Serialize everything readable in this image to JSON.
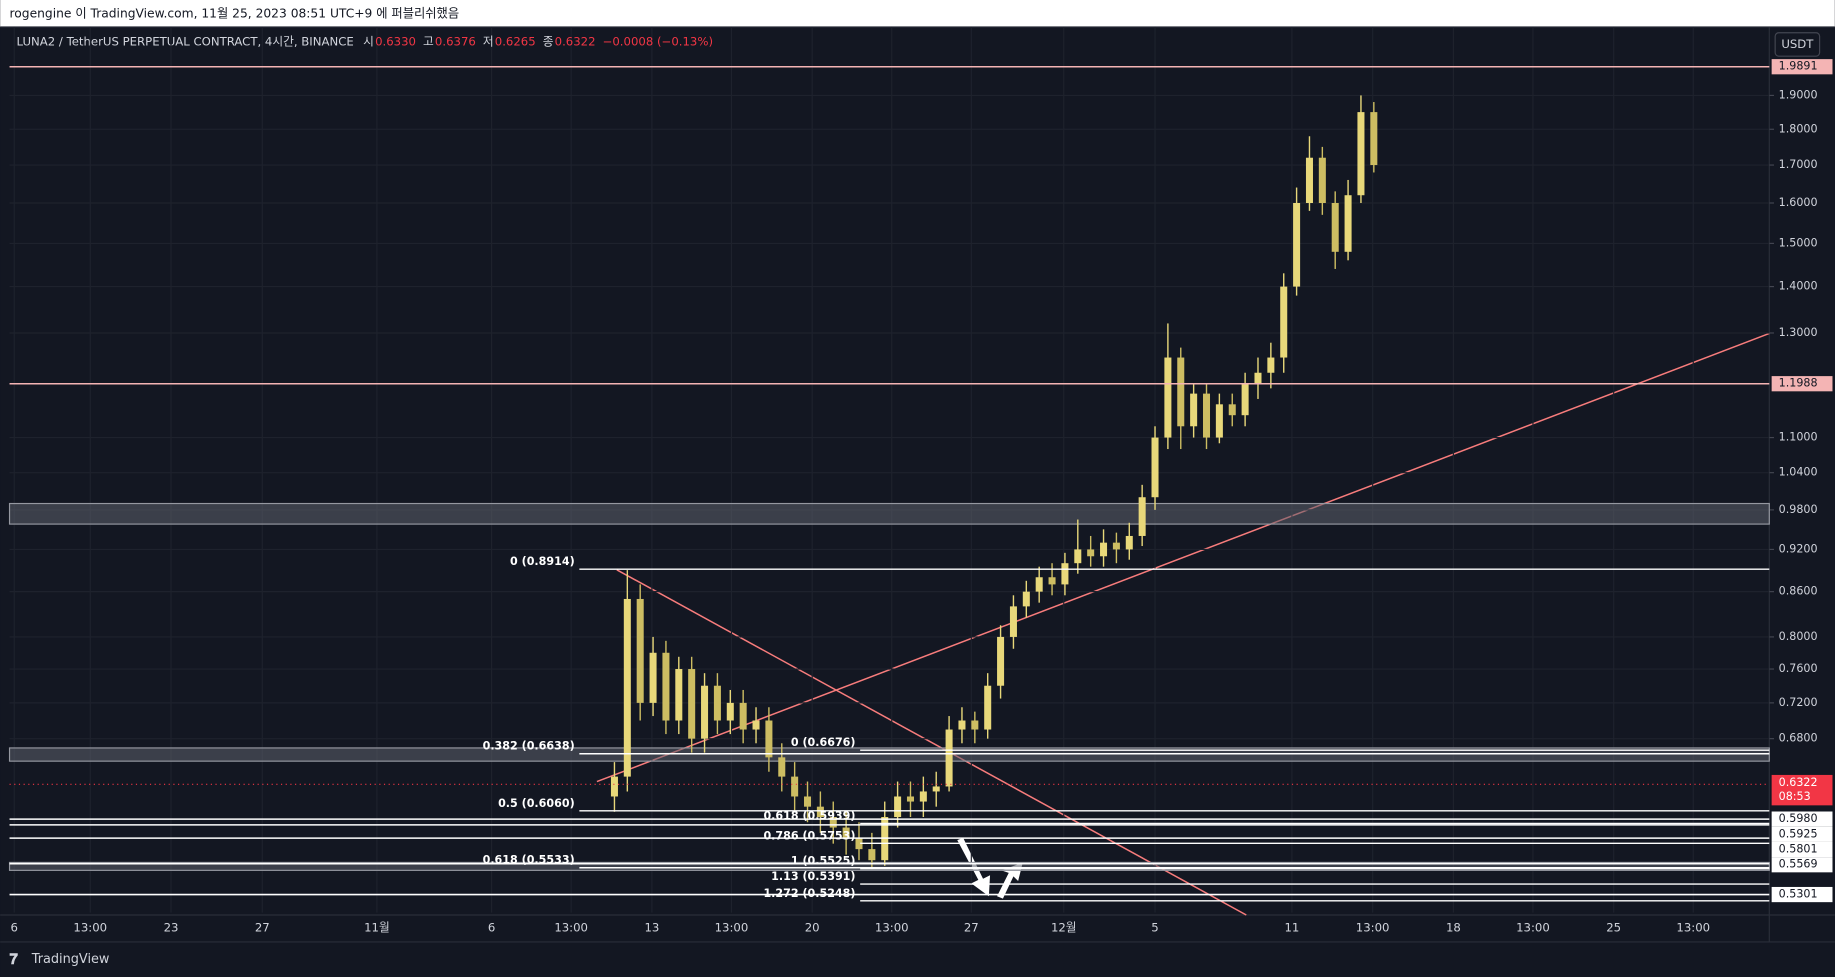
{
  "header": {
    "publisher": "rogengine 이 TradingView.com, 11월 25, 2023 08:51 UTC+9 에 퍼블리쉬했음",
    "symbol": "LUNA2 / TetherUS PERPETUAL CONTRACT, 4시간, BINANCE",
    "quote": [
      {
        "label": "시",
        "value": "0.6330"
      },
      {
        "label": "고",
        "value": "0.6376"
      },
      {
        "label": "저",
        "value": "0.6265"
      },
      {
        "label": "종",
        "value": "0.6322"
      }
    ],
    "change": "−0.0008 (−0.13%)",
    "currency": "USDT",
    "brand": "TradingView"
  },
  "chart_data": {
    "type": "candlestick",
    "log_scale": true,
    "grid": true,
    "color_up": "#e8d87a",
    "color_down": "#cdbd62",
    "ylim": [
      0.515,
      2.1
    ],
    "yticks": [
      {
        "value": 0.68,
        "label": "0.6800"
      },
      {
        "value": 0.72,
        "label": "0.7200"
      },
      {
        "value": 0.76,
        "label": "0.7600"
      },
      {
        "value": 0.8,
        "label": "0.8000"
      },
      {
        "value": 0.86,
        "label": "0.8600"
      },
      {
        "value": 0.92,
        "label": "0.9200"
      },
      {
        "value": 0.98,
        "label": "0.9800"
      },
      {
        "value": 1.04,
        "label": "1.0400"
      },
      {
        "value": 1.1,
        "label": "1.1000"
      },
      {
        "value": 1.3,
        "label": "1.3000"
      },
      {
        "value": 1.4,
        "label": "1.4000"
      },
      {
        "value": 1.5,
        "label": "1.5000"
      },
      {
        "value": 1.6,
        "label": "1.6000"
      },
      {
        "value": 1.7,
        "label": "1.7000"
      },
      {
        "value": 1.8,
        "label": "1.8000"
      },
      {
        "value": 1.9,
        "label": "1.9000"
      }
    ],
    "time_labels": [
      "6",
      "13:00",
      "23",
      "27",
      "11월",
      "6",
      "13:00",
      "13",
      "13:00",
      "20",
      "13:00",
      "27",
      "12월",
      "5",
      "11",
      "13:00",
      "18",
      "13:00",
      "25",
      "13:00"
    ],
    "open": [
      0.62,
      0.64,
      0.85,
      0.72,
      0.78,
      0.7,
      0.76,
      0.68,
      0.74,
      0.7,
      0.72,
      0.69,
      0.7,
      0.66,
      0.64,
      0.62,
      0.61,
      0.6,
      0.59,
      0.58,
      0.57,
      0.56,
      0.6,
      0.62,
      0.615,
      0.625,
      0.63,
      0.69,
      0.7,
      0.69,
      0.74,
      0.8,
      0.84,
      0.86,
      0.88,
      0.87,
      0.9,
      0.92,
      0.91,
      0.93,
      0.92,
      0.94,
      1.0,
      1.1,
      1.25,
      1.12,
      1.18,
      1.1,
      1.16,
      1.14,
      1.2,
      1.22,
      1.25,
      1.4,
      1.6,
      1.72,
      1.6,
      1.48,
      1.62,
      1.85
    ],
    "high": [
      0.655,
      0.89,
      0.87,
      0.8,
      0.795,
      0.775,
      0.775,
      0.755,
      0.755,
      0.735,
      0.735,
      0.715,
      0.715,
      0.675,
      0.655,
      0.635,
      0.625,
      0.615,
      0.605,
      0.595,
      0.585,
      0.615,
      0.635,
      0.635,
      0.64,
      0.645,
      0.705,
      0.715,
      0.71,
      0.755,
      0.815,
      0.855,
      0.875,
      0.895,
      0.9,
      0.915,
      0.965,
      0.94,
      0.95,
      0.945,
      0.96,
      1.02,
      1.12,
      1.32,
      1.27,
      1.2,
      1.2,
      1.18,
      1.18,
      1.22,
      1.25,
      1.28,
      1.43,
      1.64,
      1.78,
      1.75,
      1.63,
      1.66,
      1.9,
      1.88
    ],
    "low": [
      0.605,
      0.625,
      0.7,
      0.705,
      0.685,
      0.685,
      0.665,
      0.665,
      0.685,
      0.685,
      0.675,
      0.675,
      0.645,
      0.625,
      0.605,
      0.595,
      0.585,
      0.575,
      0.565,
      0.56,
      0.552,
      0.555,
      0.59,
      0.6,
      0.6,
      0.61,
      0.625,
      0.675,
      0.675,
      0.68,
      0.725,
      0.785,
      0.825,
      0.845,
      0.855,
      0.855,
      0.885,
      0.895,
      0.895,
      0.9,
      0.905,
      0.925,
      0.98,
      1.08,
      1.08,
      1.1,
      1.08,
      1.09,
      1.12,
      1.12,
      1.17,
      1.19,
      1.22,
      1.38,
      1.58,
      1.57,
      1.44,
      1.46,
      1.6,
      1.68
    ],
    "close": [
      0.64,
      0.85,
      0.72,
      0.78,
      0.7,
      0.76,
      0.68,
      0.74,
      0.7,
      0.72,
      0.69,
      0.7,
      0.66,
      0.64,
      0.62,
      0.61,
      0.6,
      0.59,
      0.58,
      0.57,
      0.56,
      0.6,
      0.62,
      0.615,
      0.625,
      0.63,
      0.69,
      0.7,
      0.69,
      0.74,
      0.8,
      0.84,
      0.86,
      0.88,
      0.87,
      0.9,
      0.92,
      0.91,
      0.93,
      0.92,
      0.94,
      1.0,
      1.1,
      1.25,
      1.12,
      1.18,
      1.1,
      1.16,
      1.14,
      1.2,
      1.22,
      1.25,
      1.4,
      1.6,
      1.72,
      1.6,
      1.48,
      1.62,
      1.85,
      1.7
    ],
    "levels": [
      {
        "value": 1.9891,
        "label": "1.9891",
        "color": "#f4b4b4"
      },
      {
        "value": 1.1988,
        "label": "1.1988",
        "color": "#f4b4b4"
      },
      {
        "value": 0.598,
        "label": "0.5980",
        "color": "#ffffff"
      },
      {
        "value": 0.5925,
        "label": "0.5925",
        "color": "#ffffff"
      },
      {
        "value": 0.5801,
        "label": "0.5801",
        "color": "#ffffff"
      },
      {
        "value": 0.5569,
        "label": "0.5569",
        "color": "#ffffff"
      },
      {
        "value": 0.5301,
        "label": "0.5301",
        "color": "#ffffff"
      }
    ],
    "current": {
      "value": 0.6322,
      "label": "0.6322",
      "countdown": "08:53",
      "color": "#f23645"
    },
    "zones": [
      [
        0.958,
        0.99
      ],
      [
        0.656,
        0.67
      ],
      [
        0.551,
        0.558
      ]
    ],
    "fib_main": [
      {
        "value": 0.8914,
        "label": "0 (0.8914)"
      },
      {
        "value": 0.6638,
        "label": "0.382 (0.6638)"
      },
      {
        "value": 0.606,
        "label": "0.5 (0.6060)"
      },
      {
        "value": 0.5533,
        "label": "0.618 (0.5533)"
      }
    ],
    "fib_second": [
      {
        "value": 0.6676,
        "label": "0 (0.6676)"
      },
      {
        "value": 0.5939,
        "label": "0.618 (0.5939)"
      },
      {
        "value": 0.5753,
        "label": "0.786 (0.5753)"
      },
      {
        "value": 0.5525,
        "label": "1 (0.5525)"
      },
      {
        "value": 0.5391,
        "label": "1.13 (0.5391)"
      },
      {
        "value": 0.5248,
        "label": "1.272 (0.5248)"
      }
    ]
  }
}
